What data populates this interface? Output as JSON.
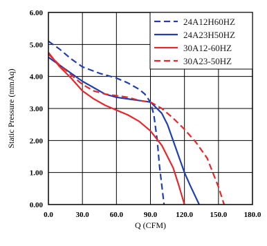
{
  "chart_data": {
    "type": "line",
    "title": "",
    "xlabel": "Q (CFM)",
    "ylabel": "Static Pressure (mmAq)",
    "xlim": [
      0,
      180
    ],
    "ylim": [
      0,
      6
    ],
    "xticks": [
      0,
      30,
      60,
      90,
      120,
      150,
      180
    ],
    "yticks": [
      0,
      1,
      2,
      3,
      4,
      5,
      6
    ],
    "xtick_labels": [
      "0.0",
      "30.0",
      "60.0",
      "90.0",
      "120.0",
      "150.0",
      "180.0"
    ],
    "ytick_labels": [
      "0.00",
      "1.00",
      "2.00",
      "3.00",
      "4.00",
      "5.00",
      "6.00"
    ],
    "grid": true,
    "legend_position": "top-right",
    "series": [
      {
        "name": "24A12H60HZ",
        "color": "#1f3fb0",
        "dash": "dashed",
        "points": [
          [
            0,
            5.1
          ],
          [
            10,
            4.85
          ],
          [
            20,
            4.55
          ],
          [
            30,
            4.3
          ],
          [
            45,
            4.1
          ],
          [
            60,
            3.95
          ],
          [
            70,
            3.8
          ],
          [
            80,
            3.6
          ],
          [
            85,
            3.45
          ],
          [
            90,
            3.2
          ],
          [
            93,
            2.8
          ],
          [
            96,
            2.0
          ],
          [
            98,
            1.2
          ],
          [
            100,
            0.6
          ],
          [
            102,
            0.0
          ]
        ]
      },
      {
        "name": "24A23H50HZ",
        "color": "#1f3fb0",
        "dash": "solid",
        "points": [
          [
            0,
            4.6
          ],
          [
            10,
            4.35
          ],
          [
            20,
            4.1
          ],
          [
            30,
            3.85
          ],
          [
            40,
            3.65
          ],
          [
            50,
            3.45
          ],
          [
            60,
            3.35
          ],
          [
            70,
            3.3
          ],
          [
            80,
            3.25
          ],
          [
            90,
            3.2
          ],
          [
            100,
            2.85
          ],
          [
            105,
            2.5
          ],
          [
            110,
            2.0
          ],
          [
            115,
            1.5
          ],
          [
            120,
            1.0
          ],
          [
            125,
            0.6
          ],
          [
            133,
            0.0
          ]
        ]
      },
      {
        "name": "30A12-60HZ",
        "color": "#e8262a",
        "dash": "solid",
        "points": [
          [
            0,
            4.75
          ],
          [
            10,
            4.3
          ],
          [
            20,
            3.95
          ],
          [
            30,
            3.55
          ],
          [
            40,
            3.3
          ],
          [
            50,
            3.1
          ],
          [
            60,
            2.95
          ],
          [
            70,
            2.8
          ],
          [
            80,
            2.6
          ],
          [
            90,
            2.3
          ],
          [
            100,
            1.85
          ],
          [
            110,
            1.15
          ],
          [
            115,
            0.6
          ],
          [
            120,
            0.0
          ]
        ]
      },
      {
        "name": "30A23-50HZ",
        "color": "#e8262a",
        "dash": "dashed",
        "points": [
          [
            0,
            4.7
          ],
          [
            10,
            4.35
          ],
          [
            20,
            4.05
          ],
          [
            30,
            3.75
          ],
          [
            40,
            3.55
          ],
          [
            50,
            3.45
          ],
          [
            60,
            3.4
          ],
          [
            70,
            3.35
          ],
          [
            80,
            3.25
          ],
          [
            90,
            3.2
          ],
          [
            100,
            3.0
          ],
          [
            110,
            2.7
          ],
          [
            120,
            2.35
          ],
          [
            130,
            1.95
          ],
          [
            140,
            1.45
          ],
          [
            145,
            1.0
          ],
          [
            150,
            0.55
          ],
          [
            155,
            0.0
          ]
        ]
      }
    ]
  }
}
